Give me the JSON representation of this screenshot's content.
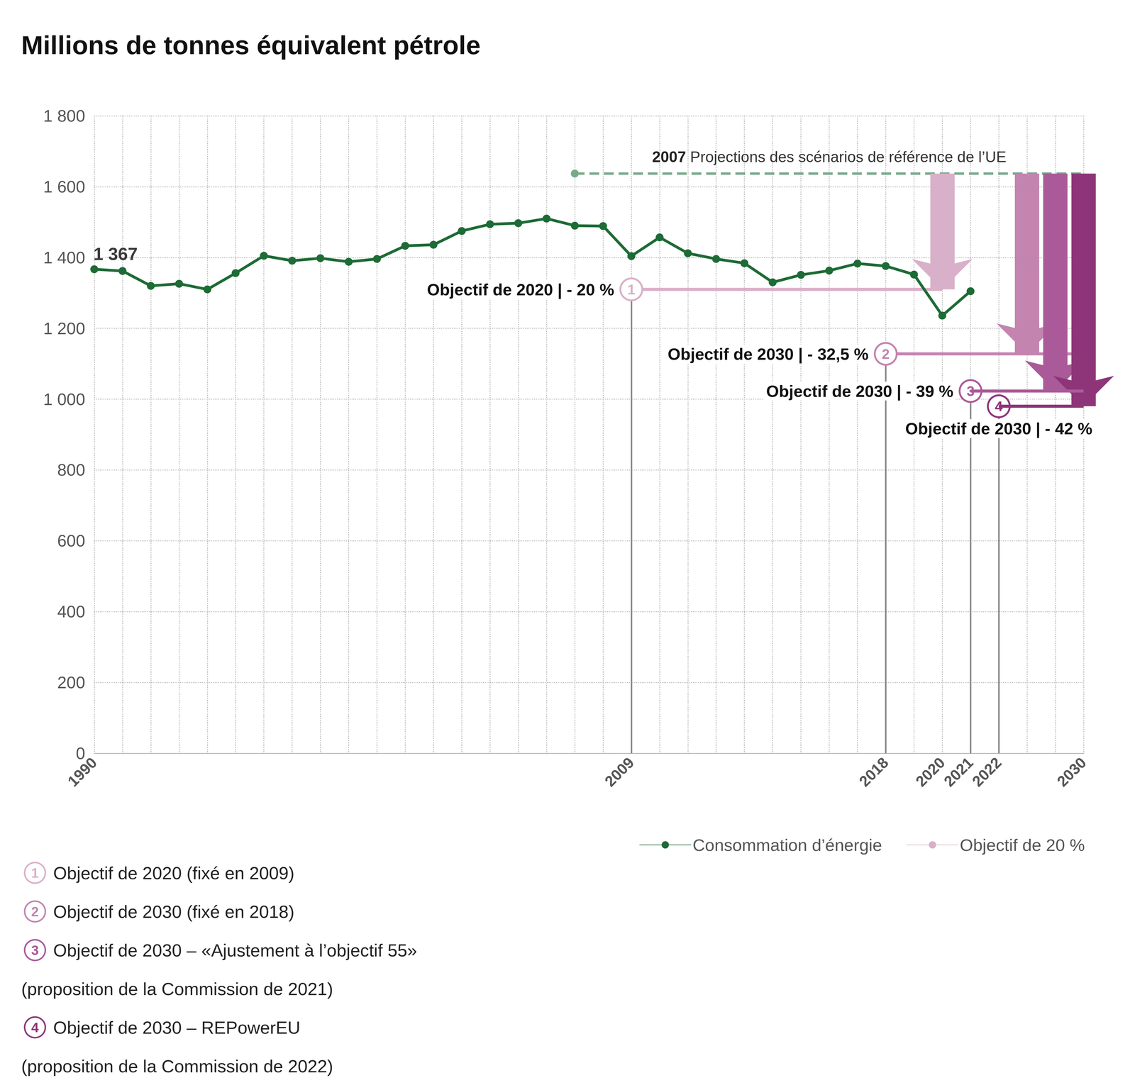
{
  "chart_data": {
    "type": "line",
    "title": "Millions de tonnes équivalent pétrole",
    "categories": [
      "1990",
      null,
      null,
      null,
      null,
      null,
      null,
      null,
      null,
      null,
      null,
      null,
      null,
      null,
      null,
      null,
      null,
      null,
      null,
      "2009",
      null,
      null,
      null,
      null,
      null,
      null,
      null,
      null,
      "2018",
      null,
      "2020",
      "2021",
      "2022",
      null,
      null,
      "2030"
    ],
    "ylim": [
      0,
      1800
    ],
    "yticks": [
      0,
      200,
      400,
      600,
      800,
      {
        "value": 1000,
        "label": "1 000"
      },
      {
        "value": 1200,
        "label": "1 200"
      },
      {
        "value": 1400,
        "label": "1 400"
      },
      {
        "value": 1600,
        "label": "1 600"
      },
      {
        "value": 1800,
        "label": "1 800"
      }
    ],
    "grid": true,
    "legend": "bottom",
    "series": [
      {
        "name": "Consommation d’énergie",
        "color": "#1d6b35",
        "marker": "circle",
        "values": [
          1367,
          1362,
          1320,
          1326,
          1310,
          1356,
          1405,
          1391,
          1398,
          1388,
          1396,
          1433,
          1436,
          1475,
          1494,
          1497,
          1510,
          1490,
          1489,
          1404,
          1457,
          1412,
          1396,
          1384,
          1330,
          1351,
          1363,
          1383,
          1376,
          1352,
          1236,
          1305,
          null,
          null,
          null,
          null
        ],
        "value_labels": [
          "1 367",
          null,
          null,
          null,
          null,
          null,
          null,
          null,
          null,
          null,
          null,
          null,
          null,
          null,
          null,
          null,
          null,
          null,
          null,
          null,
          null,
          null,
          null,
          null,
          null,
          null,
          null,
          null,
          null,
          null,
          null,
          null,
          null,
          null,
          null,
          null
        ]
      }
    ],
    "projection": {
      "text": "2007 Projections des scénarios de référence de l’UE",
      "start_index": 17,
      "end": "2030",
      "value": 1637,
      "color": "#7aa98a",
      "line_style": "dashed",
      "marker": "circle"
    },
    "targets": [
      {
        "marker": "1",
        "name": "Objectif de 20 %",
        "label": "Objectif de 2020 | - 20 %",
        "start": "2009",
        "end": "2020",
        "value": 1310,
        "color": "#d9b0c9",
        "note": [
          "Objectif de 2020 (fixé en 2009)"
        ]
      },
      {
        "marker": "2",
        "label": "Objectif de 2030 | - 32,5 %",
        "start": "2018",
        "end": "2030",
        "value": 1128,
        "color": "#c384b0",
        "note": [
          "Objectif de 2030 (fixé en 2018)"
        ]
      },
      {
        "marker": "3",
        "label": "Objectif de 2030 | - 39 %",
        "start": "2021",
        "end": "2030",
        "value": 1023,
        "color": "#aa5a98",
        "note": [
          "Objectif de 2030 – «Ajustement à l’objectif 55»",
          "(proposition de la Commission de 2021)"
        ]
      },
      {
        "marker": "4",
        "label": "Objectif de 2030 | - 42 %",
        "start": "2022",
        "end": "2030",
        "value": 980,
        "color": "#8e3579",
        "note": [
          "Objectif de 2030 – REPowerEU",
          "(proposition de la Commission de 2022)"
        ]
      }
    ]
  }
}
